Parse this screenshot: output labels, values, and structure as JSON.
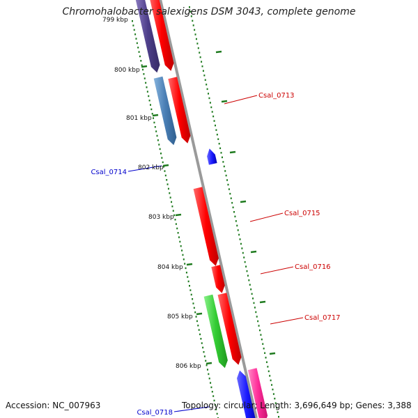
{
  "title": "Chromohalobacter salexigens DSM 3043, complete genome",
  "accession": "Accession: NC_007963",
  "stats": "Topology: circular; Length: 3,696,649 bp; Genes: 3,388",
  "colors": {
    "backbone": "#9a9a9a",
    "tick": "#1e7a1e",
    "label_forward": "#cc0000",
    "label_reverse": "#0000cc",
    "cds_red": "#ff1a1a",
    "purple": "#55458f",
    "steel_blue": "#4a7fb5",
    "green": "#33cc33",
    "pink": "#ff2e9a",
    "blue": "#1a1aff"
  },
  "scale_labels": [
    "799 kbp",
    "800 kbp",
    "801 kbp",
    "802 kbp",
    "803 kbp",
    "804 kbp",
    "805 kbp",
    "806 kbp"
  ],
  "features": [
    {
      "id": "f1",
      "color": "cds_red",
      "strand": "+"
    },
    {
      "id": "f2",
      "color": "purple",
      "strand": "+"
    },
    {
      "id": "f3",
      "color": "cds_red",
      "strand": "+"
    },
    {
      "id": "f4",
      "color": "steel_blue",
      "strand": "+"
    },
    {
      "id": "f5",
      "color": "blue",
      "strand": "-"
    },
    {
      "id": "f6",
      "color": "cds_red",
      "strand": "+"
    },
    {
      "id": "f7",
      "color": "cds_red",
      "strand": "+"
    },
    {
      "id": "f8",
      "color": "cds_red",
      "strand": "+"
    },
    {
      "id": "f9",
      "color": "green",
      "strand": "+"
    },
    {
      "id": "f10",
      "color": "pink",
      "strand": "+"
    },
    {
      "id": "f11",
      "color": "blue",
      "strand": "-"
    }
  ],
  "gene_labels": [
    {
      "name": "Csal_0713",
      "strand": "forward"
    },
    {
      "name": "Csal_0714",
      "strand": "reverse"
    },
    {
      "name": "Csal_0715",
      "strand": "forward"
    },
    {
      "name": "Csal_0716",
      "strand": "forward"
    },
    {
      "name": "Csal_0717",
      "strand": "forward"
    },
    {
      "name": "Csal_0718",
      "strand": "reverse"
    }
  ]
}
